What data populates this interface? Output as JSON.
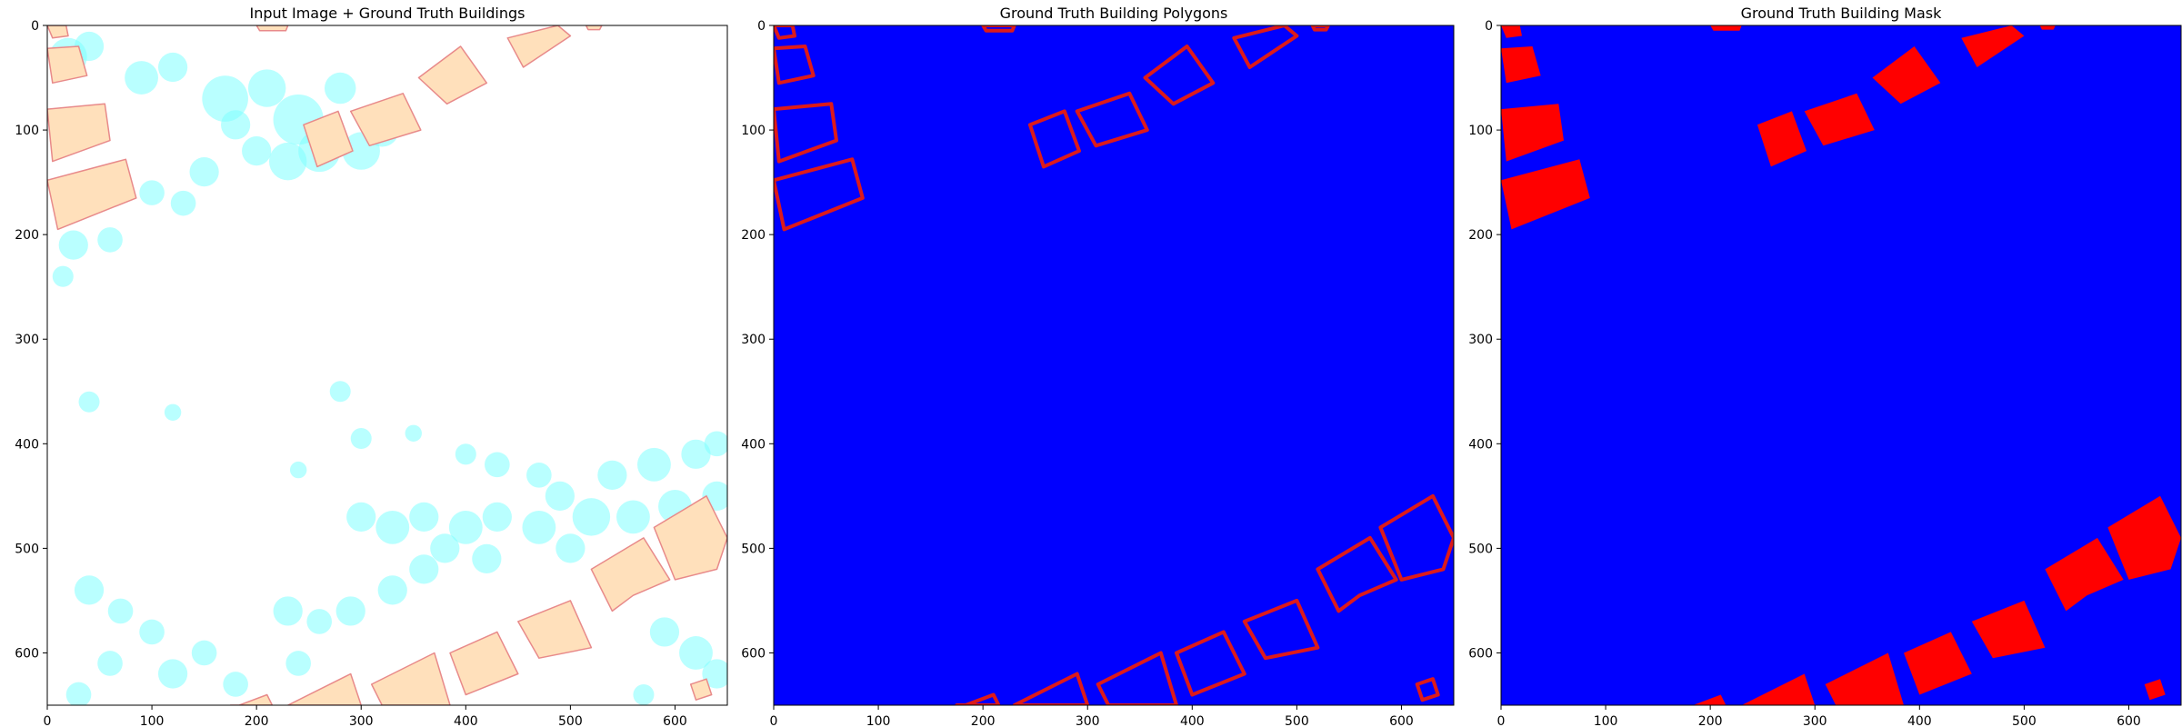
{
  "chart_data": [
    {
      "type": "image",
      "title": "Input Image + Ground Truth Buildings",
      "xlim": [
        0,
        650
      ],
      "ylim": [
        650,
        0
      ],
      "xticks": [
        0,
        100,
        200,
        300,
        400,
        500,
        600
      ],
      "yticks": [
        0,
        100,
        200,
        300,
        400,
        500,
        600
      ],
      "background": "#ffffff",
      "vegetation_color": "#7fffff",
      "building_fill": "#ffe0bb",
      "building_stroke": "#e88a8a"
    },
    {
      "type": "image",
      "title": "Ground Truth Building Polygons",
      "xlim": [
        0,
        650
      ],
      "ylim": [
        650,
        0
      ],
      "xticks": [
        0,
        100,
        200,
        300,
        400,
        500,
        600
      ],
      "yticks": [
        0,
        100,
        200,
        300,
        400,
        500,
        600
      ],
      "background": "#0000ff",
      "building_stroke": "#dd1a1a"
    },
    {
      "type": "image",
      "title": "Ground Truth Building Mask",
      "xlim": [
        0,
        650
      ],
      "ylim": [
        650,
        0
      ],
      "xticks": [
        0,
        100,
        200,
        300,
        400,
        500,
        600
      ],
      "yticks": [
        0,
        100,
        200,
        300,
        400,
        500,
        600
      ],
      "background": "#0000ff",
      "building_fill": "#ff0000"
    }
  ],
  "buildings": [
    [
      [
        0,
        0
      ],
      [
        18,
        0
      ],
      [
        20,
        10
      ],
      [
        5,
        12
      ]
    ],
    [
      [
        0,
        22
      ],
      [
        30,
        20
      ],
      [
        38,
        48
      ],
      [
        5,
        55
      ]
    ],
    [
      [
        0,
        80
      ],
      [
        55,
        75
      ],
      [
        60,
        110
      ],
      [
        5,
        130
      ]
    ],
    [
      [
        0,
        148
      ],
      [
        75,
        128
      ],
      [
        85,
        165
      ],
      [
        10,
        195
      ]
    ],
    [
      [
        245,
        95
      ],
      [
        278,
        82
      ],
      [
        292,
        120
      ],
      [
        258,
        135
      ]
    ],
    [
      [
        290,
        82
      ],
      [
        340,
        65
      ],
      [
        357,
        100
      ],
      [
        308,
        115
      ]
    ],
    [
      [
        355,
        50
      ],
      [
        395,
        20
      ],
      [
        420,
        55
      ],
      [
        382,
        75
      ]
    ],
    [
      [
        440,
        12
      ],
      [
        488,
        0
      ],
      [
        500,
        10
      ],
      [
        455,
        40
      ]
    ],
    [
      [
        200,
        0
      ],
      [
        230,
        0
      ],
      [
        228,
        5
      ],
      [
        203,
        5
      ]
    ],
    [
      [
        515,
        0
      ],
      [
        530,
        0
      ],
      [
        528,
        4
      ],
      [
        517,
        4
      ]
    ],
    [
      [
        170,
        655
      ],
      [
        210,
        640
      ],
      [
        215,
        650
      ],
      [
        175,
        650
      ]
    ],
    [
      [
        230,
        650
      ],
      [
        290,
        620
      ],
      [
        300,
        650
      ]
    ],
    [
      [
        310,
        630
      ],
      [
        370,
        600
      ],
      [
        385,
        650
      ],
      [
        320,
        650
      ]
    ],
    [
      [
        385,
        600
      ],
      [
        430,
        580
      ],
      [
        450,
        620
      ],
      [
        400,
        640
      ]
    ],
    [
      [
        450,
        570
      ],
      [
        500,
        550
      ],
      [
        520,
        595
      ],
      [
        470,
        605
      ]
    ],
    [
      [
        520,
        520
      ],
      [
        570,
        490
      ],
      [
        595,
        530
      ],
      [
        560,
        545
      ],
      [
        540,
        560
      ]
    ],
    [
      [
        580,
        480
      ],
      [
        630,
        450
      ],
      [
        650,
        490
      ],
      [
        640,
        520
      ],
      [
        600,
        530
      ]
    ],
    [
      [
        615,
        630
      ],
      [
        630,
        625
      ],
      [
        635,
        640
      ],
      [
        620,
        645
      ]
    ]
  ],
  "vegetation": [
    [
      20,
      30,
      18
    ],
    [
      40,
      20,
      14
    ],
    [
      90,
      50,
      16
    ],
    [
      120,
      40,
      14
    ],
    [
      170,
      70,
      22
    ],
    [
      210,
      60,
      18
    ],
    [
      240,
      90,
      24
    ],
    [
      260,
      120,
      20
    ],
    [
      230,
      130,
      18
    ],
    [
      320,
      100,
      16
    ],
    [
      300,
      120,
      18
    ],
    [
      280,
      60,
      15
    ],
    [
      200,
      120,
      14
    ],
    [
      180,
      95,
      14
    ],
    [
      150,
      140,
      14
    ],
    [
      130,
      170,
      12
    ],
    [
      100,
      160,
      12
    ],
    [
      25,
      210,
      14
    ],
    [
      60,
      205,
      12
    ],
    [
      15,
      240,
      10
    ],
    [
      40,
      360,
      10
    ],
    [
      120,
      370,
      8
    ],
    [
      280,
      350,
      10
    ],
    [
      300,
      395,
      10
    ],
    [
      240,
      425,
      8
    ],
    [
      350,
      390,
      8
    ],
    [
      400,
      410,
      10
    ],
    [
      430,
      420,
      12
    ],
    [
      470,
      430,
      12
    ],
    [
      490,
      450,
      14
    ],
    [
      540,
      430,
      14
    ],
    [
      580,
      420,
      16
    ],
    [
      620,
      410,
      14
    ],
    [
      640,
      400,
      12
    ],
    [
      300,
      470,
      14
    ],
    [
      330,
      480,
      16
    ],
    [
      360,
      470,
      14
    ],
    [
      400,
      480,
      16
    ],
    [
      430,
      470,
      14
    ],
    [
      470,
      480,
      16
    ],
    [
      520,
      470,
      18
    ],
    [
      560,
      470,
      16
    ],
    [
      600,
      460,
      16
    ],
    [
      640,
      450,
      14
    ],
    [
      40,
      540,
      14
    ],
    [
      70,
      560,
      12
    ],
    [
      100,
      580,
      12
    ],
    [
      120,
      620,
      14
    ],
    [
      150,
      600,
      12
    ],
    [
      180,
      630,
      12
    ],
    [
      60,
      610,
      12
    ],
    [
      30,
      640,
      12
    ],
    [
      230,
      560,
      14
    ],
    [
      260,
      570,
      12
    ],
    [
      240,
      610,
      12
    ],
    [
      290,
      560,
      14
    ],
    [
      330,
      540,
      14
    ],
    [
      360,
      520,
      14
    ],
    [
      380,
      500,
      14
    ],
    [
      420,
      510,
      14
    ],
    [
      500,
      500,
      14
    ],
    [
      590,
      580,
      14
    ],
    [
      620,
      600,
      16
    ],
    [
      640,
      620,
      14
    ],
    [
      570,
      640,
      10
    ]
  ]
}
